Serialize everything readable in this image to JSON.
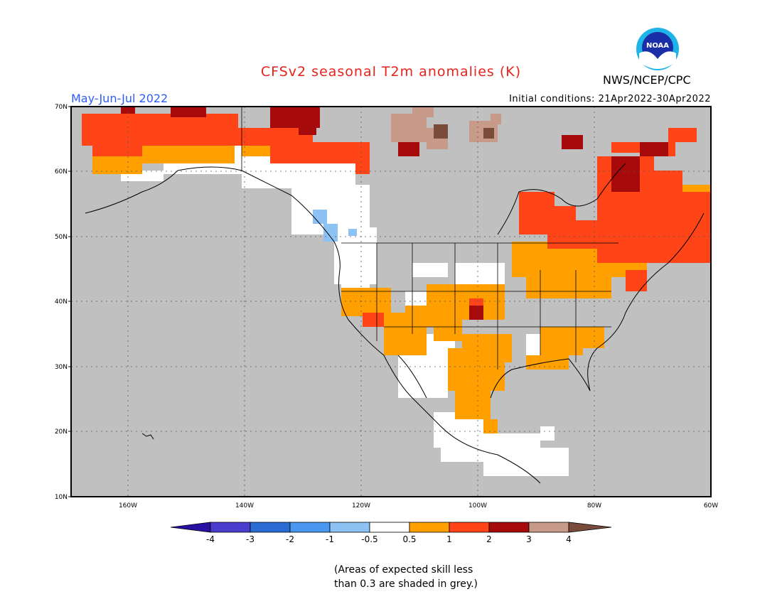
{
  "title": "CFSv2 seasonal T2m anomalies (K)",
  "org": "NWS/NCEP/CPC",
  "season": "May-Jun-Jul 2022",
  "initial_conditions": "Initial conditions: 21Apr2022-30Apr2022",
  "logo_text": "NOAA",
  "lat_labels": [
    "70N",
    "60N",
    "50N",
    "40N",
    "30N",
    "20N",
    "10N"
  ],
  "lon_labels": [
    "160W",
    "140W",
    "120W",
    "100W",
    "80W",
    "60W"
  ],
  "colorbar": {
    "labels": [
      "-4",
      "-3",
      "-2",
      "-1",
      "-0.5",
      "0.5",
      "1",
      "2",
      "3",
      "4"
    ],
    "colors": [
      "#2a0fa3",
      "#4a3ccc",
      "#2a6cd4",
      "#4a97f0",
      "#8cc3f4",
      "#ffffff",
      "#ffa000",
      "#ff4418",
      "#a60a0a",
      "#c89a8a",
      "#7a4a3a"
    ]
  },
  "note": [
    "(Areas of expected skill less",
    "than 0.3 are shaded in grey.)"
  ],
  "map_colors": {
    "ocean_grey": "#c0c0c0",
    "land_white": "#ffffff"
  }
}
